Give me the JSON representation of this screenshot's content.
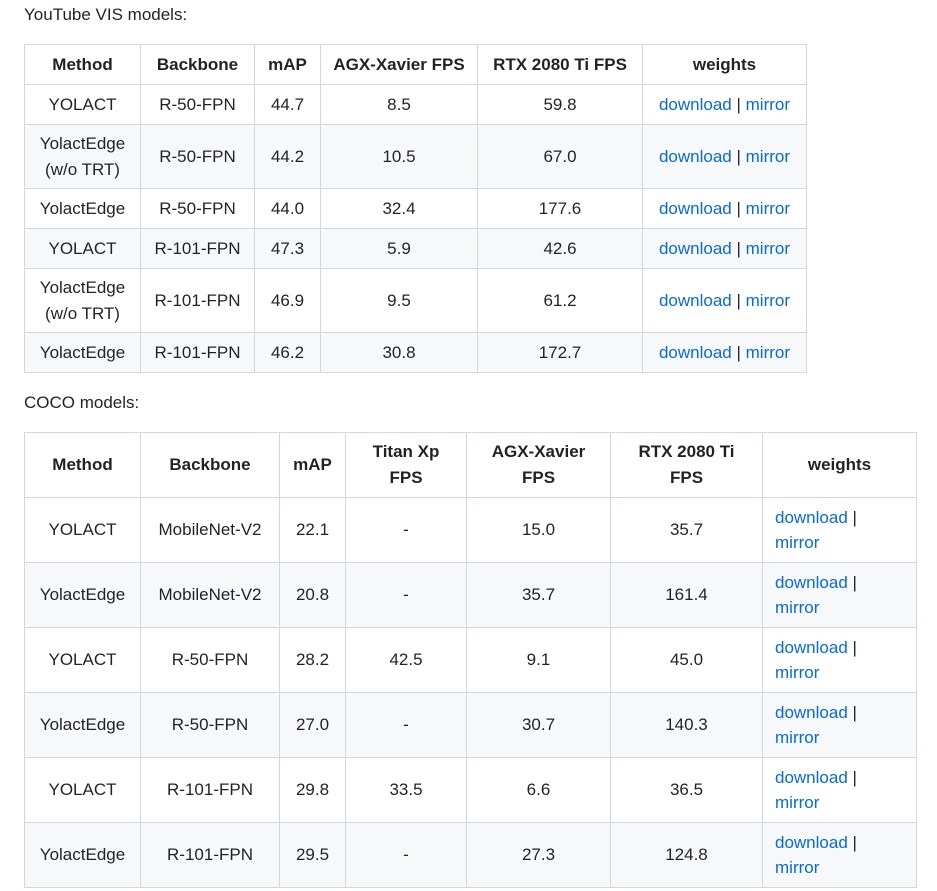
{
  "youtube": {
    "label": "YouTube VIS models:",
    "headers": [
      "Method",
      "Backbone",
      "mAP",
      "AGX-Xavier FPS",
      "RTX 2080 Ti FPS",
      "weights"
    ],
    "rows": [
      {
        "method": "YOLACT",
        "backbone": "R-50-FPN",
        "map": "44.7",
        "agx": "8.5",
        "rtx": "59.8",
        "download": "download",
        "sep": "|",
        "mirror": "mirror"
      },
      {
        "method": "YolactEdge (w/o TRT)",
        "backbone": "R-50-FPN",
        "map": "44.2",
        "agx": "10.5",
        "rtx": "67.0",
        "download": "download",
        "sep": "|",
        "mirror": "mirror"
      },
      {
        "method": "YolactEdge",
        "backbone": "R-50-FPN",
        "map": "44.0",
        "agx": "32.4",
        "rtx": "177.6",
        "download": "download",
        "sep": "|",
        "mirror": "mirror"
      },
      {
        "method": "YOLACT",
        "backbone": "R-101-FPN",
        "map": "47.3",
        "agx": "5.9",
        "rtx": "42.6",
        "download": "download",
        "sep": "|",
        "mirror": "mirror"
      },
      {
        "method": "YolactEdge (w/o TRT)",
        "backbone": "R-101-FPN",
        "map": "46.9",
        "agx": "9.5",
        "rtx": "61.2",
        "download": "download",
        "sep": "|",
        "mirror": "mirror"
      },
      {
        "method": "YolactEdge",
        "backbone": "R-101-FPN",
        "map": "46.2",
        "agx": "30.8",
        "rtx": "172.7",
        "download": "download",
        "sep": "|",
        "mirror": "mirror"
      }
    ]
  },
  "coco": {
    "label": "COCO models:",
    "headers": [
      "Method",
      "Backbone",
      "mAP",
      "Titan Xp FPS",
      "AGX-Xavier FPS",
      "RTX 2080 Ti FPS",
      "weights"
    ],
    "rows": [
      {
        "method": "YOLACT",
        "backbone": "MobileNet-V2",
        "map": "22.1",
        "titan": "-",
        "agx": "15.0",
        "rtx": "35.7",
        "download": "download",
        "sep": "|",
        "mirror": "mirror"
      },
      {
        "method": "YolactEdge",
        "backbone": "MobileNet-V2",
        "map": "20.8",
        "titan": "-",
        "agx": "35.7",
        "rtx": "161.4",
        "download": "download",
        "sep": "|",
        "mirror": "mirror"
      },
      {
        "method": "YOLACT",
        "backbone": "R-50-FPN",
        "map": "28.2",
        "titan": "42.5",
        "agx": "9.1",
        "rtx": "45.0",
        "download": "download",
        "sep": "|",
        "mirror": "mirror"
      },
      {
        "method": "YolactEdge",
        "backbone": "R-50-FPN",
        "map": "27.0",
        "titan": "-",
        "agx": "30.7",
        "rtx": "140.3",
        "download": "download",
        "sep": "|",
        "mirror": "mirror"
      },
      {
        "method": "YOLACT",
        "backbone": "R-101-FPN",
        "map": "29.8",
        "titan": "33.5",
        "agx": "6.6",
        "rtx": "36.5",
        "download": "download",
        "sep": "|",
        "mirror": "mirror"
      },
      {
        "method": "YolactEdge",
        "backbone": "R-101-FPN",
        "map": "29.5",
        "titan": "-",
        "agx": "27.3",
        "rtx": "124.8",
        "download": "download",
        "sep": "|",
        "mirror": "mirror"
      }
    ]
  },
  "colors": {
    "link": "#0969da",
    "border": "#d1d9e0",
    "stripe": "#f6f8fa",
    "text": "#1f2328"
  }
}
